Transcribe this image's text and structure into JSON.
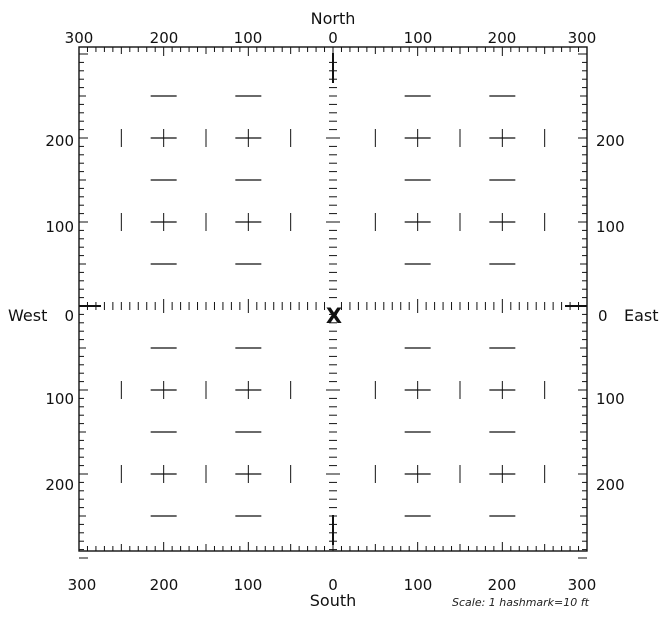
{
  "title_north": "North",
  "label_south": "South",
  "label_west": "West",
  "label_east": "East",
  "top_ticks": [
    "300",
    "200",
    "100",
    "0",
    "100",
    "200",
    "300"
  ],
  "bottom_ticks": [
    "300",
    "200",
    "100",
    "0",
    "100",
    "200",
    "300"
  ],
  "left_ticks": [
    "200",
    "100",
    "0",
    "100",
    "200"
  ],
  "right_ticks": [
    "200",
    "100",
    "0",
    "100",
    "200"
  ],
  "origin_marker": "X",
  "scale_note": "Scale: 1 hashmark=10 ft",
  "grid": {
    "extent": 300,
    "major_step": 100,
    "minor_step": 10,
    "unit": "ft"
  },
  "colors": {
    "ink": "#111111",
    "background": "#ffffff"
  }
}
